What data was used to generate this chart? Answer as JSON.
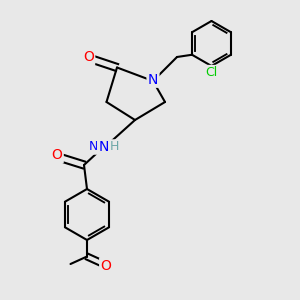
{
  "bg_color": "#e8e8e8",
  "bond_color": "#000000",
  "bond_width": 1.5,
  "atom_colors": {
    "O": "#ff0000",
    "N": "#0000ff",
    "Cl": "#00cc00",
    "C": "#000000",
    "H": "#6fa8a8"
  },
  "font_size_atom": 9,
  "font_size_label": 9
}
